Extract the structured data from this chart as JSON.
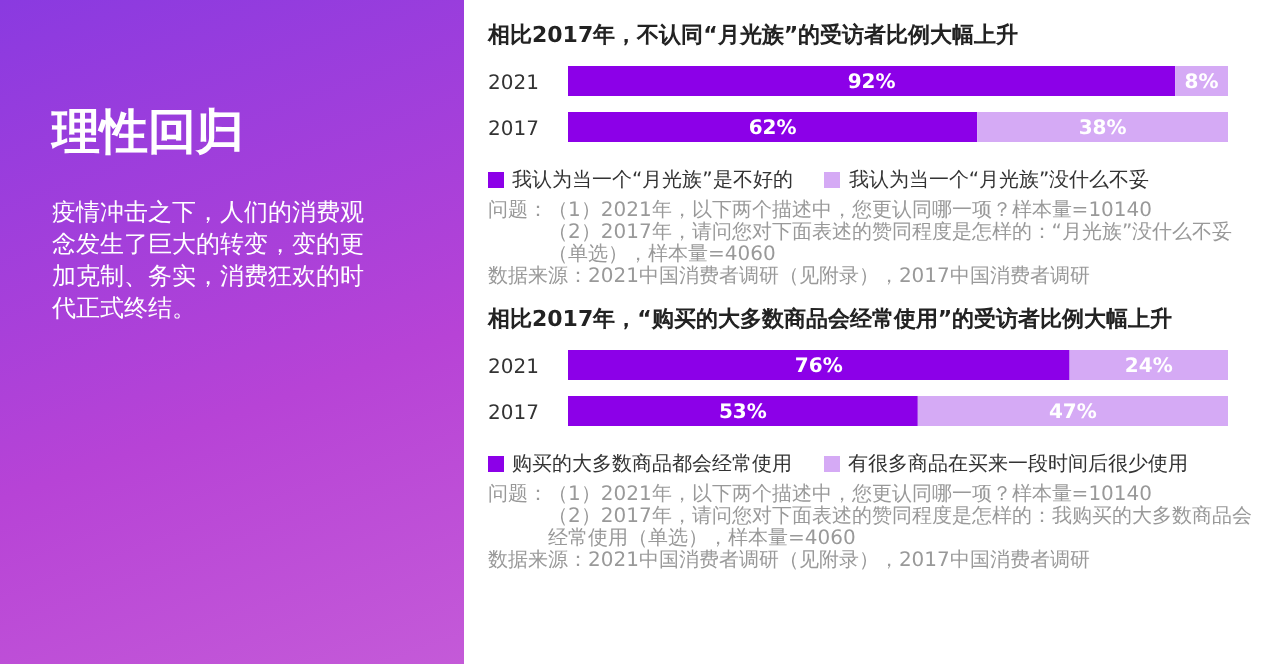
{
  "chart_data": [
    {
      "type": "other",
      "title": "理性回归",
      "annotations": [
        "疫情冲击之下，人们的消费观念发生了巨大的转变，变的更加克制、务实，消费狂欢的时代正式终结。"
      ]
    },
    {
      "type": "bar",
      "title": "相比2017年，不认同“月光族”的受访者比例大幅上升",
      "orientation": "horizontal",
      "stacked": true,
      "categories": [
        "2021",
        "2017"
      ],
      "series": [
        {
          "name": "我认为当一个“月光族”是不好的",
          "color": "#8c00e8",
          "values": [
            92,
            62
          ],
          "value_labels": [
            "92%",
            "62%"
          ]
        },
        {
          "name": "我认为当一个“月光族”没什么不妥",
          "color": "#d5aaf5",
          "values": [
            8,
            38
          ],
          "value_labels": [
            "8%",
            "38%"
          ]
        }
      ],
      "data_labels": true,
      "legend": "bottom",
      "annotations": [
        "问题：（1）2021年，以下两个描述中，您更认同哪一项？样本量=10140",
        "（2）2017年，请问您对下面表述的赞同程度是怎样的：“月光族”没什么不妥（单选），样本量=4060",
        "数据来源：2021中国消费者调研（见附录），2017中国消费者调研"
      ]
    },
    {
      "type": "bar",
      "title": "相比2017年，“购买的大多数商品会经常使用”的受访者比例大幅上升",
      "orientation": "horizontal",
      "stacked": true,
      "categories": [
        "2021",
        "2017"
      ],
      "series": [
        {
          "name": "购买的大多数商品都会经常使用",
          "color": "#8c00e8",
          "values": [
            76,
            53
          ],
          "value_labels": [
            "76%",
            "53%"
          ]
        },
        {
          "name": "有很多商品在买来一段时间后很少使用",
          "color": "#d5aaf5",
          "values": [
            24,
            47
          ],
          "value_labels": [
            "24%",
            "47%"
          ]
        }
      ],
      "data_labels": true,
      "legend": "bottom",
      "annotations": [
        "问题：（1）2021年，以下两个描述中，您更认同哪一项？样本量=10140",
        "（2）2017年，请问您对下面表述的赞同程度是怎样的：我购买的大多数商品会经常使用（单选），样本量=4060",
        "数据来源：2021中国消费者调研（见附录），2017中国消费者调研"
      ]
    }
  ]
}
